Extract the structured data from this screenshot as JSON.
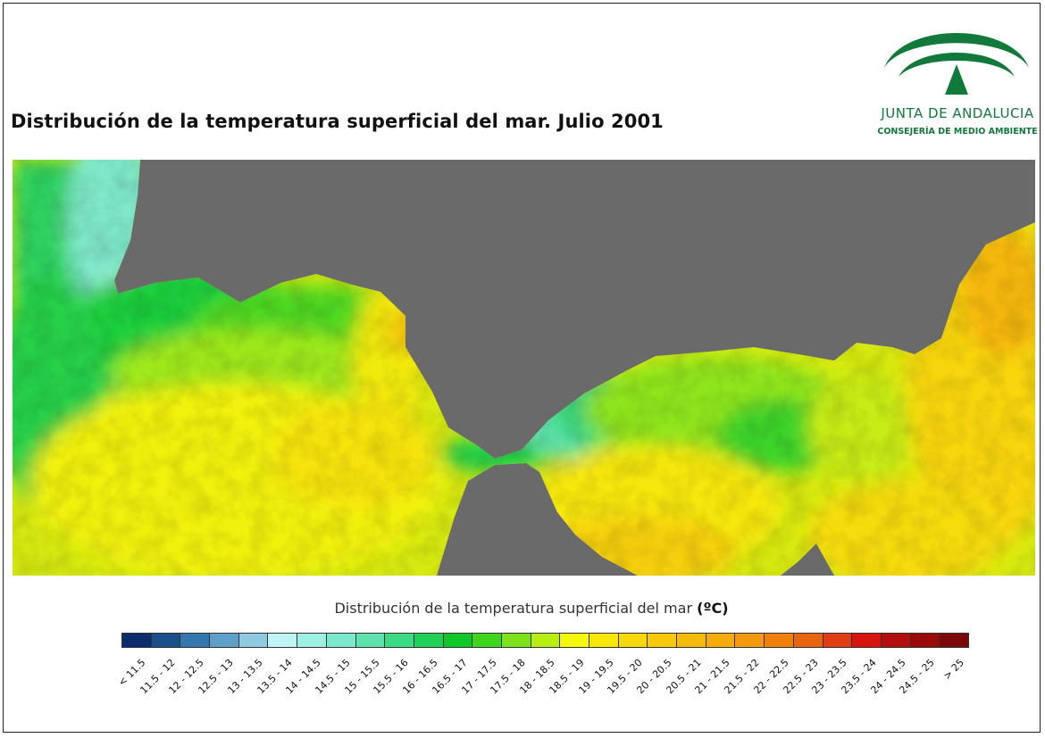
{
  "title": "Distribución de la temperatura superficial del mar. Julio 2001",
  "logo": {
    "name": "JUNTA DE ANDALUCIA",
    "subtitle": "CONSEJERÍA DE MEDIO AMBIENTE",
    "color": "#117a3a"
  },
  "map": {
    "land_color": "#6a6a6a",
    "description_icon": "sea-surface-temperature-raster"
  },
  "legend": {
    "title": "Distribución de la temperatura superficial del mar",
    "unit": "(ºC)",
    "classes": [
      {
        "label": "< 11.5",
        "color": "#0b2d6b"
      },
      {
        "label": "11.5 - 12",
        "color": "#1a4f8c"
      },
      {
        "label": "12 - 12.5",
        "color": "#3477aa"
      },
      {
        "label": "12.5 - 13",
        "color": "#5ea0c8"
      },
      {
        "label": "13 - 13.5",
        "color": "#8ecbe0"
      },
      {
        "label": "13.5 - 14",
        "color": "#bff3f6"
      },
      {
        "label": "14 - 14.5",
        "color": "#9ef0e2"
      },
      {
        "label": "14.5 - 15",
        "color": "#7de9cc"
      },
      {
        "label": "15 - 15.5",
        "color": "#5fe2ad"
      },
      {
        "label": "15.5 - 16",
        "color": "#3dda84"
      },
      {
        "label": "16 - 16.5",
        "color": "#20d058"
      },
      {
        "label": "16.5 - 17",
        "color": "#12c72a"
      },
      {
        "label": "17 - 17.5",
        "color": "#3ed61c"
      },
      {
        "label": "17.5 - 18",
        "color": "#7ee21a"
      },
      {
        "label": "18 - 18.5",
        "color": "#b8ee12"
      },
      {
        "label": "18.5 - 19",
        "color": "#f5f80a"
      },
      {
        "label": "19 - 19.5",
        "color": "#f7e809"
      },
      {
        "label": "19.5 - 20",
        "color": "#f7d80a"
      },
      {
        "label": "20 - 20.5",
        "color": "#f6c90b"
      },
      {
        "label": "20.5 - 21",
        "color": "#f5bb0c"
      },
      {
        "label": "21 - 21.5",
        "color": "#f4ab0c"
      },
      {
        "label": "21.5 - 22",
        "color": "#f29a0c"
      },
      {
        "label": "22 - 22.5",
        "color": "#ee800b"
      },
      {
        "label": "22.5 - 23",
        "color": "#e8640f"
      },
      {
        "label": "23 - 23.5",
        "color": "#e03d12"
      },
      {
        "label": "23.5 - 24",
        "color": "#d81410"
      },
      {
        "label": "24 - 24.5",
        "color": "#b30d0d"
      },
      {
        "label": "24.5 - 25",
        "color": "#9a0a0a"
      },
      {
        "label": "> 25",
        "color": "#7c0808"
      }
    ]
  }
}
